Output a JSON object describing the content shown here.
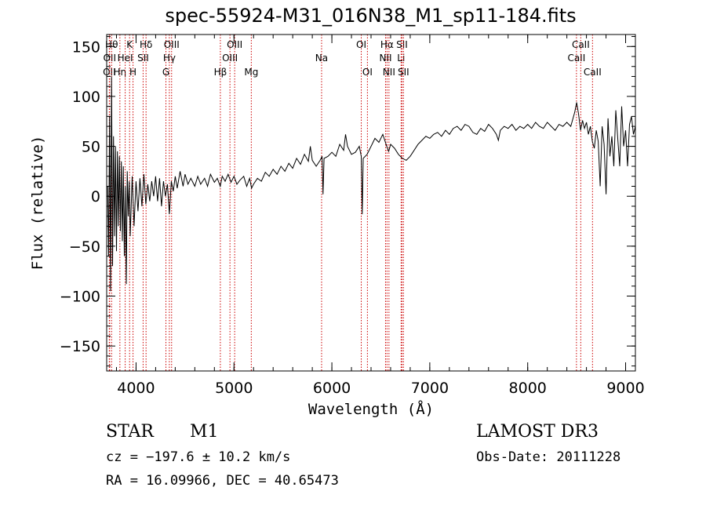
{
  "chart_data": {
    "type": "line",
    "title": "spec-55924-M31_016N38_M1_sp11-184.fits",
    "xlabel": "Wavelength (Å)",
    "ylabel": "Flux (relative)",
    "xlim": [
      3700,
      9100
    ],
    "ylim": [
      -175,
      162
    ],
    "xticks": [
      4000,
      5000,
      6000,
      7000,
      8000,
      9000
    ],
    "yticks": [
      -150,
      -100,
      -50,
      0,
      50,
      100,
      150
    ],
    "x_minor_step": 200,
    "y_minor_step": 10,
    "line_color": "#000000",
    "marker_color": "#cc0000",
    "spectrum": [
      [
        3710,
        10
      ],
      [
        3720,
        -60
      ],
      [
        3730,
        80
      ],
      [
        3740,
        -95
      ],
      [
        3750,
        120
      ],
      [
        3760,
        -70
      ],
      [
        3770,
        60
      ],
      [
        3780,
        -40
      ],
      [
        3790,
        50
      ],
      [
        3800,
        -55
      ],
      [
        3810,
        45
      ],
      [
        3820,
        -30
      ],
      [
        3830,
        40
      ],
      [
        3840,
        -35
      ],
      [
        3850,
        35
      ],
      [
        3860,
        -45
      ],
      [
        3870,
        30
      ],
      [
        3880,
        -60
      ],
      [
        3890,
        10
      ],
      [
        3900,
        -88
      ],
      [
        3910,
        25
      ],
      [
        3920,
        -20
      ],
      [
        3930,
        15
      ],
      [
        3940,
        -40
      ],
      [
        3960,
        20
      ],
      [
        3980,
        -30
      ],
      [
        4000,
        15
      ],
      [
        4020,
        -15
      ],
      [
        4040,
        18
      ],
      [
        4060,
        -10
      ],
      [
        4080,
        22
      ],
      [
        4100,
        -8
      ],
      [
        4120,
        12
      ],
      [
        4140,
        -5
      ],
      [
        4160,
        15
      ],
      [
        4180,
        0
      ],
      [
        4200,
        20
      ],
      [
        4220,
        -5
      ],
      [
        4240,
        18
      ],
      [
        4260,
        -10
      ],
      [
        4280,
        15
      ],
      [
        4300,
        0
      ],
      [
        4320,
        12
      ],
      [
        4340,
        -18
      ],
      [
        4360,
        15
      ],
      [
        4380,
        5
      ],
      [
        4400,
        20
      ],
      [
        4420,
        8
      ],
      [
        4450,
        25
      ],
      [
        4480,
        10
      ],
      [
        4500,
        22
      ],
      [
        4530,
        12
      ],
      [
        4560,
        18
      ],
      [
        4600,
        10
      ],
      [
        4630,
        20
      ],
      [
        4660,
        12
      ],
      [
        4700,
        18
      ],
      [
        4730,
        10
      ],
      [
        4760,
        22
      ],
      [
        4800,
        14
      ],
      [
        4830,
        18
      ],
      [
        4860,
        10
      ],
      [
        4880,
        20
      ],
      [
        4910,
        15
      ],
      [
        4940,
        22
      ],
      [
        4970,
        14
      ],
      [
        5000,
        20
      ],
      [
        5030,
        12
      ],
      [
        5060,
        16
      ],
      [
        5100,
        20
      ],
      [
        5130,
        10
      ],
      [
        5160,
        18
      ],
      [
        5180,
        8
      ],
      [
        5200,
        12
      ],
      [
        5240,
        18
      ],
      [
        5280,
        15
      ],
      [
        5320,
        24
      ],
      [
        5360,
        20
      ],
      [
        5400,
        27
      ],
      [
        5440,
        22
      ],
      [
        5480,
        30
      ],
      [
        5520,
        25
      ],
      [
        5560,
        33
      ],
      [
        5600,
        28
      ],
      [
        5640,
        38
      ],
      [
        5680,
        32
      ],
      [
        5720,
        42
      ],
      [
        5760,
        35
      ],
      [
        5780,
        50
      ],
      [
        5800,
        36
      ],
      [
        5840,
        30
      ],
      [
        5880,
        36
      ],
      [
        5900,
        40
      ],
      [
        5910,
        2
      ],
      [
        5920,
        38
      ],
      [
        5960,
        40
      ],
      [
        6000,
        44
      ],
      [
        6040,
        40
      ],
      [
        6080,
        52
      ],
      [
        6120,
        46
      ],
      [
        6140,
        62
      ],
      [
        6160,
        50
      ],
      [
        6200,
        42
      ],
      [
        6240,
        44
      ],
      [
        6280,
        50
      ],
      [
        6300,
        40
      ],
      [
        6310,
        -18
      ],
      [
        6320,
        38
      ],
      [
        6360,
        42
      ],
      [
        6400,
        50
      ],
      [
        6440,
        58
      ],
      [
        6480,
        54
      ],
      [
        6520,
        62
      ],
      [
        6560,
        50
      ],
      [
        6580,
        45
      ],
      [
        6600,
        52
      ],
      [
        6640,
        48
      ],
      [
        6680,
        42
      ],
      [
        6720,
        38
      ],
      [
        6760,
        36
      ],
      [
        6800,
        40
      ],
      [
        6840,
        46
      ],
      [
        6880,
        52
      ],
      [
        6920,
        56
      ],
      [
        6960,
        60
      ],
      [
        7000,
        58
      ],
      [
        7040,
        62
      ],
      [
        7080,
        64
      ],
      [
        7120,
        60
      ],
      [
        7160,
        66
      ],
      [
        7200,
        62
      ],
      [
        7240,
        68
      ],
      [
        7280,
        70
      ],
      [
        7320,
        66
      ],
      [
        7360,
        72
      ],
      [
        7400,
        70
      ],
      [
        7440,
        64
      ],
      [
        7480,
        62
      ],
      [
        7520,
        68
      ],
      [
        7560,
        65
      ],
      [
        7600,
        72
      ],
      [
        7640,
        68
      ],
      [
        7680,
        62
      ],
      [
        7700,
        56
      ],
      [
        7720,
        66
      ],
      [
        7760,
        70
      ],
      [
        7800,
        68
      ],
      [
        7840,
        72
      ],
      [
        7880,
        66
      ],
      [
        7920,
        70
      ],
      [
        7960,
        68
      ],
      [
        8000,
        72
      ],
      [
        8040,
        68
      ],
      [
        8080,
        74
      ],
      [
        8120,
        70
      ],
      [
        8160,
        68
      ],
      [
        8200,
        74
      ],
      [
        8240,
        70
      ],
      [
        8280,
        66
      ],
      [
        8320,
        72
      ],
      [
        8360,
        70
      ],
      [
        8400,
        74
      ],
      [
        8440,
        70
      ],
      [
        8480,
        84
      ],
      [
        8500,
        94
      ],
      [
        8520,
        82
      ],
      [
        8540,
        66
      ],
      [
        8560,
        76
      ],
      [
        8580,
        68
      ],
      [
        8600,
        74
      ],
      [
        8620,
        62
      ],
      [
        8640,
        70
      ],
      [
        8660,
        55
      ],
      [
        8680,
        48
      ],
      [
        8700,
        66
      ],
      [
        8720,
        55
      ],
      [
        8740,
        10
      ],
      [
        8760,
        70
      ],
      [
        8780,
        52
      ],
      [
        8800,
        2
      ],
      [
        8820,
        78
      ],
      [
        8840,
        40
      ],
      [
        8860,
        60
      ],
      [
        8880,
        30
      ],
      [
        8900,
        86
      ],
      [
        8920,
        58
      ],
      [
        8940,
        30
      ],
      [
        8960,
        90
      ],
      [
        8980,
        50
      ],
      [
        9000,
        66
      ],
      [
        9020,
        30
      ],
      [
        9040,
        72
      ],
      [
        9060,
        80
      ],
      [
        9080,
        62
      ],
      [
        9100,
        70
      ]
    ],
    "line_markers": [
      {
        "label": "OII",
        "x": 3727,
        "row": 3
      },
      {
        "label": "OII",
        "x": 3730,
        "row": 2
      },
      {
        "label": "Hθ",
        "x": 3750,
        "row": 1
      },
      {
        "label": "Hη",
        "x": 3835,
        "row": 3
      },
      {
        "label": "HeI",
        "x": 3889,
        "row": 2
      },
      {
        "label": "K",
        "x": 3934,
        "row": 1
      },
      {
        "label": "H",
        "x": 3969,
        "row": 3
      },
      {
        "label": "SII",
        "x": 4072,
        "row": 2
      },
      {
        "label": "Hδ",
        "x": 4102,
        "row": 1
      },
      {
        "label": "G",
        "x": 4305,
        "row": 3
      },
      {
        "label": "Hγ",
        "x": 4340,
        "row": 2
      },
      {
        "label": "OIII",
        "x": 4363,
        "row": 1
      },
      {
        "label": "Hβ",
        "x": 4861,
        "row": 3
      },
      {
        "label": "OIII",
        "x": 4959,
        "row": 2
      },
      {
        "label": "OIII",
        "x": 5007,
        "row": 1
      },
      {
        "label": "Mg",
        "x": 5177,
        "row": 3
      },
      {
        "label": "Na",
        "x": 5895,
        "row": 2
      },
      {
        "label": "OI",
        "x": 6300,
        "row": 1
      },
      {
        "label": "OI",
        "x": 6363,
        "row": 3
      },
      {
        "label": "NII",
        "x": 6548,
        "row": 2
      },
      {
        "label": "Hα",
        "x": 6563,
        "row": 1
      },
      {
        "label": "NII",
        "x": 6583,
        "row": 3
      },
      {
        "label": "Li",
        "x": 6707,
        "row": 2
      },
      {
        "label": "SII",
        "x": 6716,
        "row": 1
      },
      {
        "label": "SII",
        "x": 6731,
        "row": 3
      },
      {
        "label": "CaII",
        "x": 8498,
        "row": 2
      },
      {
        "label": "CaII",
        "x": 8542,
        "row": 1
      },
      {
        "label": "CaII",
        "x": 8662,
        "row": 3
      }
    ]
  },
  "info": {
    "object_type": "STAR",
    "subclass": "M1",
    "survey": "LAMOST DR3",
    "cz": "cz = −197.6 ± 10.2 km/s",
    "obs_date": "Obs-Date: 20111228",
    "radec": "RA =  16.09966, DEC =  40.65473"
  }
}
